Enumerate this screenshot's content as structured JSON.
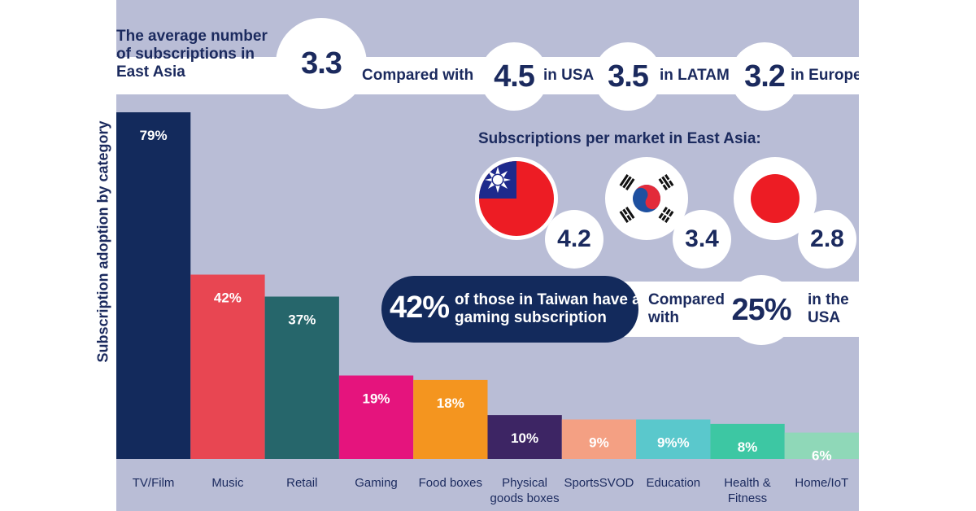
{
  "chart_data": {
    "type": "bar",
    "ylabel": "Subscription adoption by category",
    "categories": [
      "TV/Film",
      "Music",
      "Retail",
      "Gaming",
      "Food boxes",
      "Physical\ngoods boxes",
      "SportsSVOD",
      "Education",
      "Health &\nFitness",
      "Home/IoT"
    ],
    "values": [
      79,
      42,
      37,
      19,
      18,
      10,
      9,
      9,
      8,
      6
    ],
    "data_labels": [
      "79%",
      "42%",
      "37%",
      "19%",
      "18%",
      "10%",
      "9%",
      "9%%",
      "8%",
      "6%"
    ],
    "colors": [
      "#132a5c",
      "#e84652",
      "#26666b",
      "#e5147d",
      "#f4951f",
      "#3d2564",
      "#f4a083",
      "#5ac8cc",
      "#3dc7a3",
      "#8fd8b8"
    ],
    "ylim": [
      0,
      79
    ],
    "grid": false,
    "legend": "none"
  },
  "headline": {
    "text": "The average number of subscriptions in East Asia",
    "value": "3.3",
    "compared_with": "Compared with",
    "regions": [
      {
        "value": "4.5",
        "label": "in USA"
      },
      {
        "value": "3.5",
        "label": "in LATAM"
      },
      {
        "value": "3.2",
        "label": "in Europe"
      }
    ]
  },
  "markets": {
    "title": "Subscriptions per market in East Asia:",
    "items": [
      {
        "icon": "taiwan-flag-icon",
        "value": "4.2"
      },
      {
        "icon": "south-korea-flag-icon",
        "value": "3.4"
      },
      {
        "icon": "japan-flag-icon",
        "value": "2.8"
      }
    ]
  },
  "gaming": {
    "value": "42%",
    "text": "of those in Taiwan have a gaming subscription",
    "compared_with": "Compared with",
    "usa_value": "25%",
    "usa_label": "in the USA"
  },
  "colors": {
    "panel": "#b9bdd6",
    "navy": "#1b2a5e",
    "flag_red": "#ed1c24",
    "flag_blue": "#1e2a8c"
  }
}
